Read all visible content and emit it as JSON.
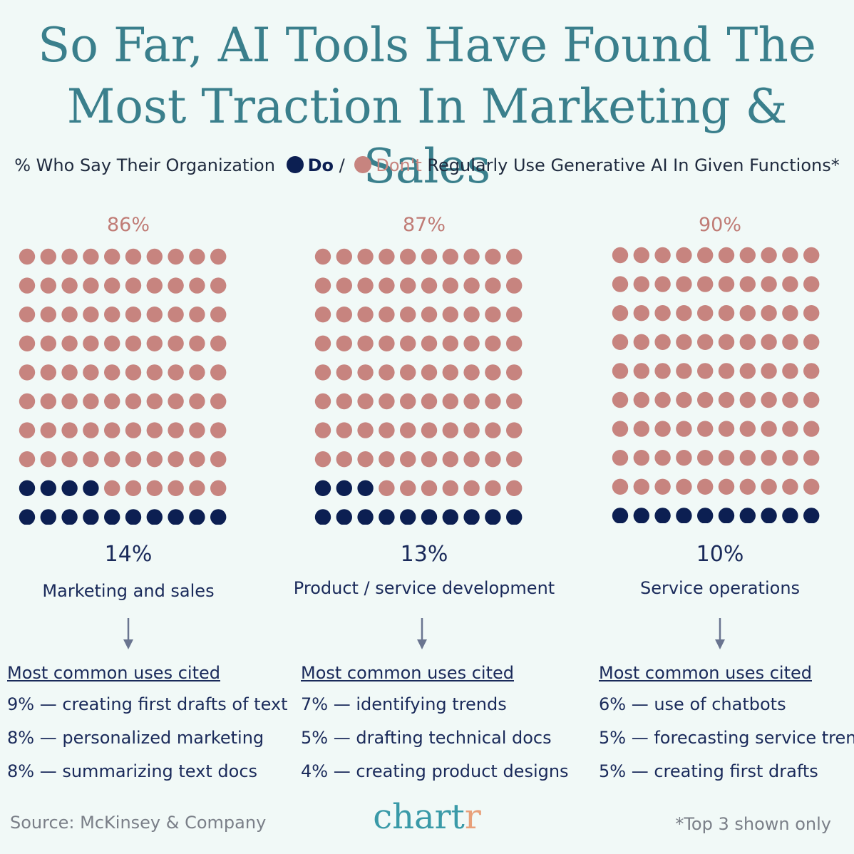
{
  "title": {
    "line1": "So Far, AI Tools Have Found The",
    "line2": "Most Traction In Marketing & Sales"
  },
  "subtitle": {
    "prefix": "% Who Say Their Organization",
    "do_label": "Do",
    "separator": "/",
    "dont_label": "Don't",
    "suffix": "Regularly Use Generative AI In Given Functions*"
  },
  "colors": {
    "do": "#0c1f52",
    "dont": "#c7847f",
    "title": "#3a7f8c"
  },
  "chart_data": {
    "type": "waffle",
    "grid": "10x10",
    "series_names": [
      "Do",
      "Don't"
    ],
    "panels": [
      {
        "function": "Marketing and sales",
        "do": 14,
        "dont": 86,
        "do_label": "14%",
        "dont_label": "86%"
      },
      {
        "function": "Product / service development",
        "do": 13,
        "dont": 87,
        "do_label": "13%",
        "dont_label": "87%"
      },
      {
        "function": "Service operations",
        "do": 10,
        "dont": 90,
        "do_label": "10%",
        "dont_label": "90%"
      }
    ]
  },
  "uses": {
    "heading": "Most common uses cited",
    "columns": [
      {
        "rows": [
          {
            "pct": "9%",
            "text": "creating first drafts of text"
          },
          {
            "pct": "8%",
            "text": "personalized marketing"
          },
          {
            "pct": "8%",
            "text": "summarizing text docs"
          }
        ]
      },
      {
        "rows": [
          {
            "pct": "7%",
            "text": "identifying trends"
          },
          {
            "pct": "5%",
            "text": "drafting technical docs"
          },
          {
            "pct": "4%",
            "text": "creating product designs"
          }
        ]
      },
      {
        "rows": [
          {
            "pct": "6%",
            "text": "use of chatbots"
          },
          {
            "pct": "5%",
            "text": "forecasting service trends"
          },
          {
            "pct": "5%",
            "text": "creating first drafts"
          }
        ]
      }
    ]
  },
  "footer": {
    "source": "Source: McKinsey & Company",
    "logo_main": "chart",
    "logo_accent": "r",
    "footnote": "*Top 3 shown only"
  }
}
